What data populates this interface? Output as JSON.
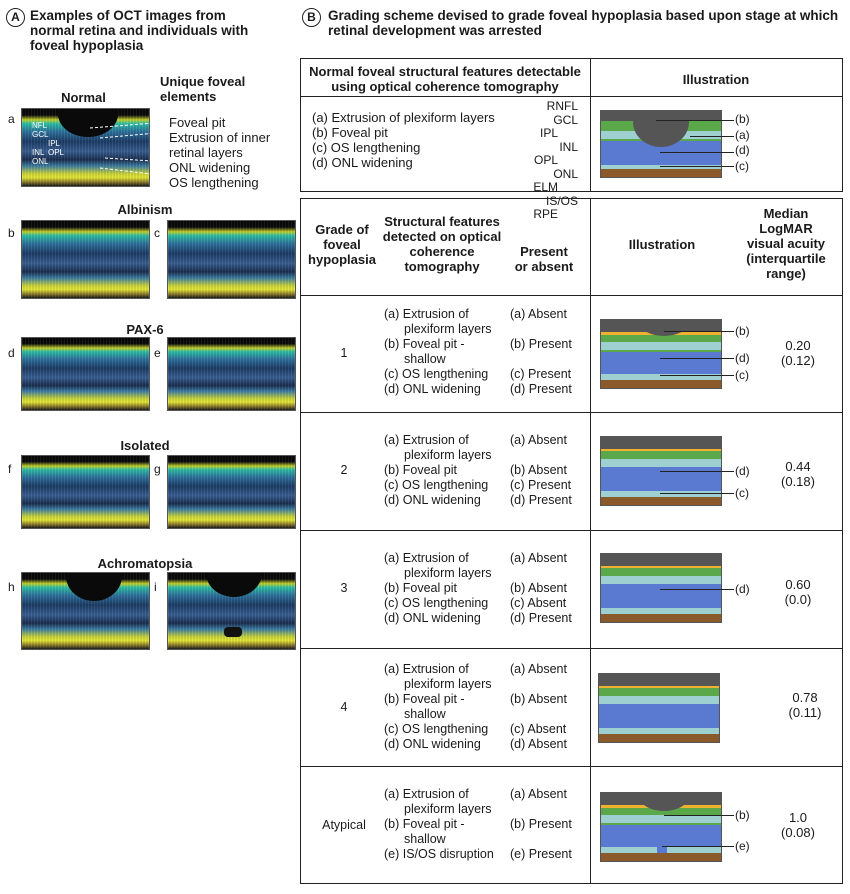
{
  "panelA": {
    "badge": "A",
    "title_lines": [
      "Examples of OCT images from",
      "normal retina and individuals with",
      "foveal hypoplasia"
    ],
    "normal_heading": "Normal",
    "unique_heading_lines": [
      "Unique foveal",
      "elements"
    ],
    "normal_features": [
      "Foveal pit",
      "Extrusion of inner",
      "retinal layers",
      "ONL widening",
      "OS lengthening"
    ],
    "layer_labels": [
      "NFL",
      "GCL",
      "IPL",
      "INL",
      "OPL",
      "ONL"
    ],
    "groups": [
      {
        "name": "Albinism",
        "letters": [
          "b",
          "c"
        ]
      },
      {
        "name": "PAX-6",
        "letters": [
          "d",
          "e"
        ]
      },
      {
        "name": "Isolated",
        "letters": [
          "f",
          "g"
        ]
      },
      {
        "name": "Achromatopsia",
        "letters": [
          "h",
          "i"
        ]
      }
    ],
    "letter_a": "a"
  },
  "panelB": {
    "badge": "B",
    "title_lines": [
      "Grading scheme devised to grade foveal hypoplasia based upon stage at which",
      "retinal development was arrested"
    ],
    "normal_table": {
      "header_lines": [
        "Normal foveal structural features detectable",
        "using optical coherence tomography"
      ],
      "illus_header": "Illustration",
      "features": [
        "(a) Extrusion of plexiform layers",
        "(b) Foveal pit",
        "(c) OS lengthening",
        "(d) ONL widening"
      ],
      "layer_left": [
        "RNFL",
        "GCL",
        "IPL",
        "INL",
        "OPL",
        "ONL",
        "ELM",
        "IS/OS",
        "RPE"
      ],
      "right_marks": [
        "(b)",
        "(a)",
        "(d)",
        "(c)"
      ]
    },
    "grade_table": {
      "headers": {
        "grade": [
          "Grade of",
          "foveal",
          "hypoplasia"
        ],
        "features": [
          "Structural features",
          "detected on optical",
          "coherence",
          "tomography"
        ],
        "present": [
          "Present",
          "or absent"
        ],
        "illus": "Illustration",
        "va": [
          "Median",
          "LogMAR",
          "visual acuity",
          "(interquartile",
          "range)"
        ]
      },
      "rows": [
        {
          "grade": "1",
          "features": [
            "(a) Extrusion of",
            "plexiform layers",
            "(b) Foveal pit -",
            "shallow",
            "(c) OS lengthening",
            "(d) ONL widening"
          ],
          "status": [
            "(a) Absent",
            "(b) Present",
            "(c) Present",
            "(d) Present"
          ],
          "marks": [
            "(b)",
            "(d)",
            "(c)"
          ],
          "va": [
            "0.20",
            "(0.12)"
          ]
        },
        {
          "grade": "2",
          "features": [
            "(a) Extrusion of",
            "plexiform layers",
            "(b) Foveal pit",
            "(c) OS lengthening",
            "(d) ONL widening"
          ],
          "status": [
            "(a) Absent",
            "(b) Absent",
            "(c) Present",
            "(d) Present"
          ],
          "marks": [
            "(d)",
            "(c)"
          ],
          "va": [
            "0.44",
            "(0.18)"
          ]
        },
        {
          "grade": "3",
          "features": [
            "(a) Extrusion of",
            "plexiform layers",
            "(b) Foveal pit",
            "(c) OS lengthening",
            "(d) ONL widening"
          ],
          "status": [
            "(a) Absent",
            "(b) Absent",
            "(c) Absent",
            "(d) Present"
          ],
          "marks": [
            "(d)"
          ],
          "va": [
            "0.60",
            "(0.0)"
          ]
        },
        {
          "grade": "4",
          "features": [
            "(a) Extrusion of",
            "plexiform layers",
            "(b) Foveal pit -",
            "shallow",
            "(c) OS lengthening",
            "(d) ONL widening"
          ],
          "status": [
            "(a) Absent",
            "(b) Absent",
            "(c) Absent",
            "(d) Absent"
          ],
          "marks": [],
          "va": [
            "0.78",
            "(0.11)"
          ]
        },
        {
          "grade": "Atypical",
          "features": [
            "(a) Extrusion of",
            "plexiform layers",
            "(b) Foveal pit -",
            "shallow",
            "(e) IS/OS disruption"
          ],
          "status": [
            "(a) Absent",
            "(b) Present",
            "(e) Present"
          ],
          "marks": [
            "(b)",
            "(e)"
          ],
          "va": [
            "1.0",
            "(0.08)"
          ]
        }
      ]
    }
  }
}
